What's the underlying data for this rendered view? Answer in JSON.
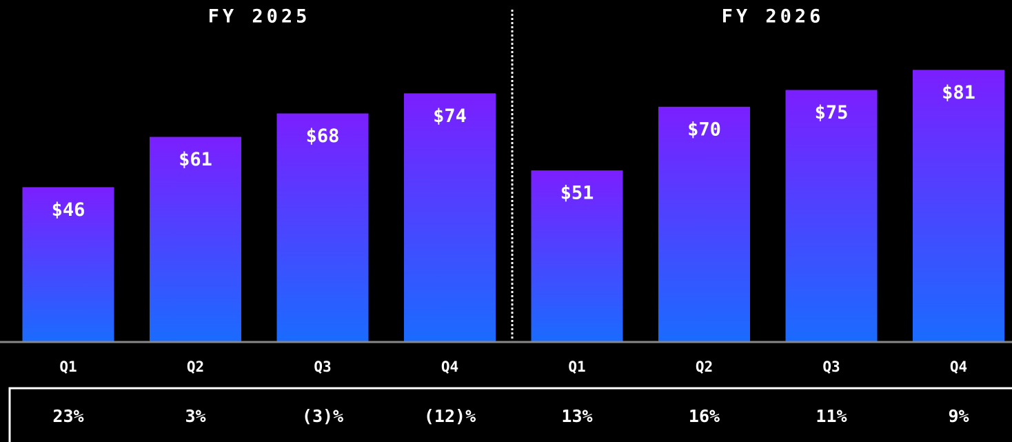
{
  "chart_data": {
    "type": "bar",
    "group_labels": [
      "FY 2025",
      "FY 2026"
    ],
    "categories": [
      "Q1",
      "Q2",
      "Q3",
      "Q4",
      "Q1",
      "Q2",
      "Q3",
      "Q4"
    ],
    "values": [
      46,
      61,
      68,
      74,
      51,
      70,
      75,
      81
    ],
    "value_labels": [
      "$46",
      "$61",
      "$68",
      "$74",
      "$51",
      "$70",
      "$75",
      "$81"
    ],
    "growth_labels": [
      "23%",
      "3%",
      "(3)%",
      "(12)%",
      "13%",
      "16%",
      "11%",
      "9%"
    ],
    "gradient": [
      "#7b1fff",
      "#1a6bff"
    ],
    "ylim": [
      0,
      100
    ]
  }
}
